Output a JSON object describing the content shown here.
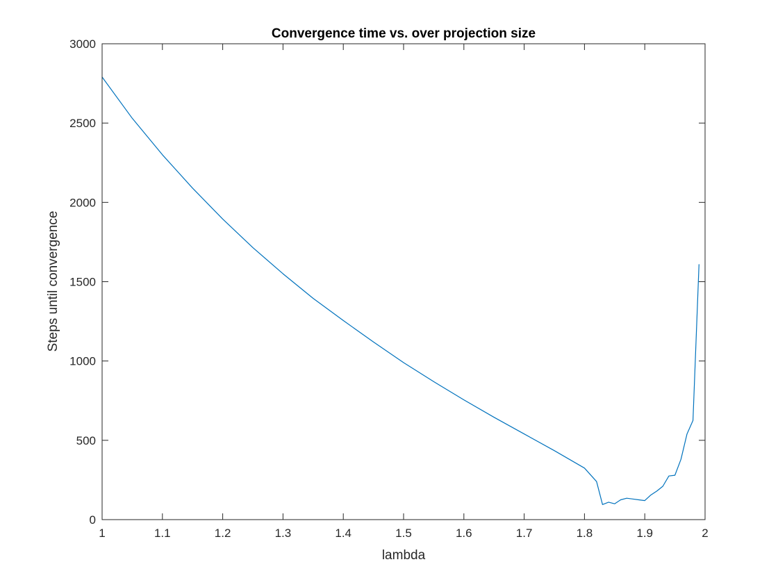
{
  "chart_data": {
    "type": "line",
    "title": "Convergence time vs. over projection size",
    "xlabel": "lambda",
    "ylabel": "Steps until convergence",
    "xlim": [
      1,
      2
    ],
    "ylim": [
      0,
      3000
    ],
    "xticks": [
      1,
      1.1,
      1.2,
      1.3,
      1.4,
      1.5,
      1.6,
      1.7,
      1.8,
      1.9,
      2
    ],
    "xtick_labels": [
      "1",
      "1.1",
      "1.2",
      "1.3",
      "1.4",
      "1.5",
      "1.6",
      "1.7",
      "1.8",
      "1.9",
      "2"
    ],
    "yticks": [
      0,
      500,
      1000,
      1500,
      2000,
      2500,
      3000
    ],
    "ytick_labels": [
      "0",
      "500",
      "1000",
      "1500",
      "2000",
      "2500",
      "3000"
    ],
    "grid": false,
    "box": true,
    "series": [
      {
        "color": "#0072BD",
        "x": [
          1.0,
          1.05,
          1.1,
          1.15,
          1.2,
          1.25,
          1.3,
          1.35,
          1.4,
          1.45,
          1.5,
          1.55,
          1.6,
          1.65,
          1.7,
          1.75,
          1.8,
          1.82,
          1.83,
          1.84,
          1.85,
          1.86,
          1.87,
          1.88,
          1.89,
          1.9,
          1.91,
          1.92,
          1.93,
          1.94,
          1.95,
          1.96,
          1.97,
          1.98,
          1.99
        ],
        "y": [
          2790,
          2530,
          2300,
          2090,
          1895,
          1715,
          1550,
          1395,
          1255,
          1120,
          990,
          870,
          755,
          645,
          540,
          435,
          325,
          240,
          95,
          110,
          100,
          125,
          135,
          130,
          125,
          120,
          155,
          180,
          210,
          275,
          280,
          380,
          540,
          625,
          1610
        ]
      }
    ]
  }
}
